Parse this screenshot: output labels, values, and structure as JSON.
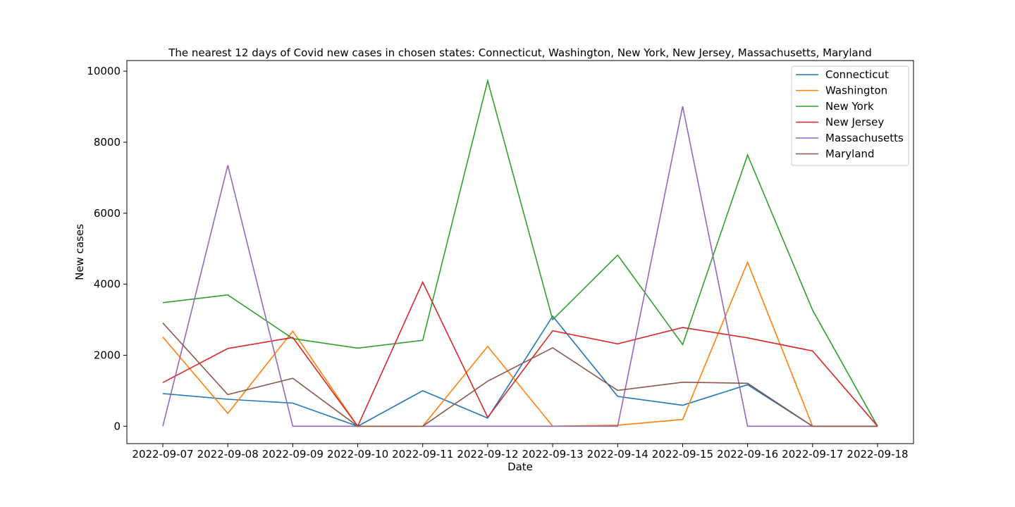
{
  "chart_data": {
    "type": "line",
    "title": "The nearest 12 days of Covid new cases in chosen states: Connecticut, Washington, New York, New Jersey, Massachusetts, Maryland",
    "xlabel": "Date",
    "ylabel": "New cases",
    "categories": [
      "2022-09-07",
      "2022-09-08",
      "2022-09-09",
      "2022-09-10",
      "2022-09-11",
      "2022-09-12",
      "2022-09-13",
      "2022-09-14",
      "2022-09-15",
      "2022-09-16",
      "2022-09-17",
      "2022-09-18"
    ],
    "ylim": [
      -490,
      10300
    ],
    "yticks": [
      0,
      2000,
      4000,
      6000,
      8000,
      10000
    ],
    "grid": false,
    "legend_position": "top-right",
    "series": [
      {
        "name": "Connecticut",
        "color": "#1f77b4",
        "values": [
          920,
          760,
          650,
          0,
          1000,
          230,
          3100,
          840,
          590,
          1170,
          0,
          0
        ]
      },
      {
        "name": "Washington",
        "color": "#ff7f0e",
        "values": [
          2510,
          360,
          2680,
          0,
          0,
          2250,
          0,
          30,
          190,
          4620,
          0,
          0
        ]
      },
      {
        "name": "New York",
        "color": "#2ca02c",
        "values": [
          3480,
          3700,
          2470,
          2200,
          2420,
          9730,
          3000,
          4820,
          2300,
          7640,
          3270,
          0
        ]
      },
      {
        "name": "New Jersey",
        "color": "#d62728",
        "values": [
          1230,
          2190,
          2500,
          0,
          4060,
          250,
          2690,
          2320,
          2780,
          2490,
          2120,
          0
        ]
      },
      {
        "name": "Massachusetts",
        "color": "#9467bd",
        "values": [
          0,
          7350,
          0,
          0,
          0,
          0,
          0,
          0,
          9010,
          0,
          0,
          0
        ]
      },
      {
        "name": "Maryland",
        "color": "#8c564b",
        "values": [
          2910,
          890,
          1350,
          0,
          0,
          1270,
          2210,
          1010,
          1240,
          1210,
          0,
          0
        ]
      }
    ]
  }
}
